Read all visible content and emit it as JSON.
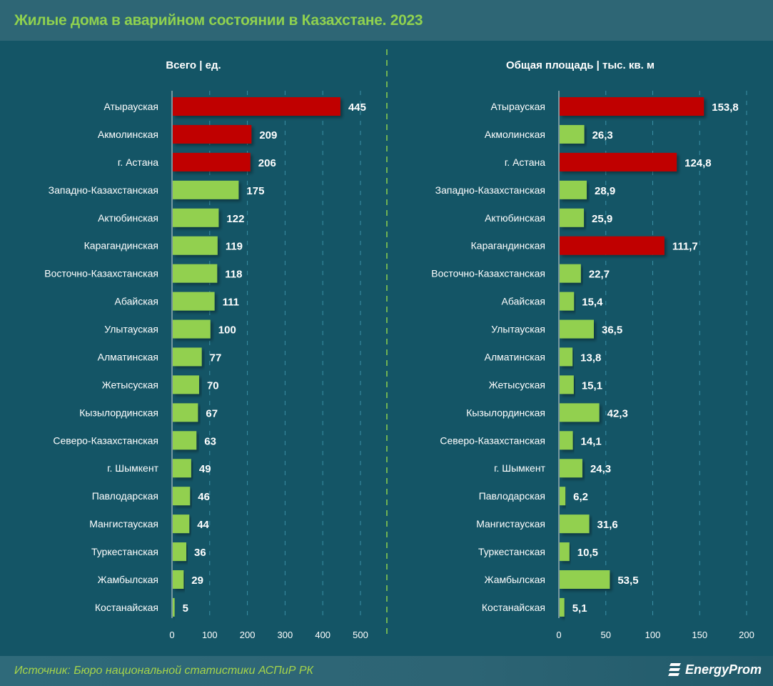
{
  "title": "Жилые дома в аварийном состоянии в Казахстане. 2023",
  "source": "Источник: Бюро национальной статистики АСПиР РК",
  "logo": "EnergyProm",
  "colors": {
    "background": "#145566",
    "highlight": "#c00000",
    "bar": "#92d050",
    "title": "#8fd14f"
  },
  "chart_data": [
    {
      "type": "bar",
      "orientation": "horizontal",
      "title": "Всего | ед.",
      "categories": [
        "Атырауская",
        "Акмолинская",
        "г. Астана",
        "Западно-Казахстанская",
        "Актюбинская",
        "Карагандинская",
        "Восточно-Казахстанская",
        "Абайская",
        "Улытауская",
        "Алматинская",
        "Жетысуская",
        "Кызылординская",
        "Северо-Казахстанская",
        "г. Шымкент",
        "Павлодарская",
        "Мангистауская",
        "Туркестанская",
        "Жамбылская",
        "Костанайская"
      ],
      "values": [
        445,
        209,
        206,
        175,
        122,
        119,
        118,
        111,
        100,
        77,
        70,
        67,
        63,
        49,
        46,
        44,
        36,
        29,
        5
      ],
      "labels": [
        "445",
        "209",
        "206",
        "175",
        "122",
        "119",
        "118",
        "111",
        "100",
        "77",
        "70",
        "67",
        "63",
        "49",
        "46",
        "44",
        "36",
        "29",
        "5"
      ],
      "highlighted": [
        0,
        1,
        2
      ],
      "xlim": [
        0,
        500
      ],
      "ticks": [
        "0",
        "100",
        "200",
        "300",
        "400",
        "500"
      ],
      "tick_values": [
        0,
        100,
        200,
        300,
        400,
        500
      ],
      "grid": true
    },
    {
      "type": "bar",
      "orientation": "horizontal",
      "title": "Общая площадь | тыс. кв. м",
      "categories": [
        "Атырауская",
        "Акмолинская",
        "г. Астана",
        "Западно-Казахстанская",
        "Актюбинская",
        "Карагандинская",
        "Восточно-Казахстанская",
        "Абайская",
        "Улытауская",
        "Алматинская",
        "Жетысуская",
        "Кызылординская",
        "Северо-Казахстанская",
        "г. Шымкент",
        "Павлодарская",
        "Мангистауская",
        "Туркестанская",
        "Жамбылская",
        "Костанайская"
      ],
      "values": [
        153.8,
        26.3,
        124.8,
        28.9,
        25.9,
        111.7,
        22.7,
        15.4,
        36.5,
        13.8,
        15.1,
        42.3,
        14.1,
        24.3,
        6.2,
        31.6,
        10.5,
        53.5,
        5.1
      ],
      "labels": [
        "153,8",
        "26,3",
        "124,8",
        "28,9",
        "25,9",
        "111,7",
        "22,7",
        "15,4",
        "36,5",
        "13,8",
        "15,1",
        "42,3",
        "14,1",
        "24,3",
        "6,2",
        "31,6",
        "10,5",
        "53,5",
        "5,1"
      ],
      "highlighted": [
        0,
        2,
        5
      ],
      "xlim": [
        0,
        200
      ],
      "ticks": [
        "0",
        "50",
        "100",
        "150",
        "200"
      ],
      "tick_values": [
        0,
        50,
        100,
        150,
        200
      ],
      "grid": true
    }
  ]
}
